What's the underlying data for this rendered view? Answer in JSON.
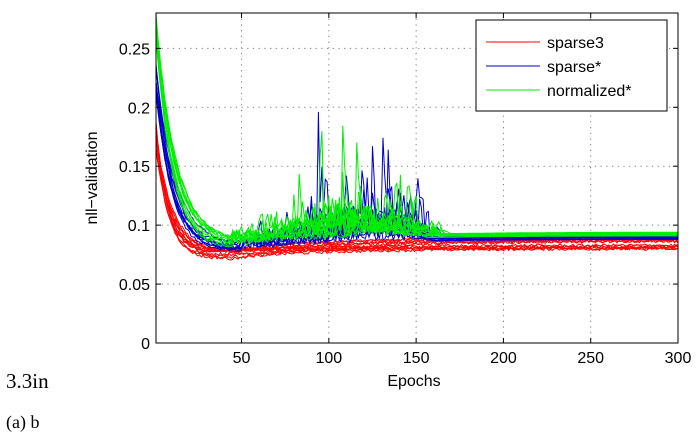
{
  "chart_data": {
    "type": "line",
    "xlabel": "Epochs",
    "ylabel": "nll−validation",
    "xlim": [
      1,
      300
    ],
    "ylim": [
      0,
      0.28
    ],
    "xticks": [
      50,
      100,
      150,
      200,
      250,
      300
    ],
    "yticks": [
      0,
      0.05,
      0.1,
      0.15,
      0.2,
      0.25
    ],
    "ytick_labels": [
      "0",
      "0.05",
      "0.1",
      "0.15",
      "0.2",
      "0.25"
    ],
    "grid": true,
    "legend_position": "top-right",
    "series": [
      {
        "name": "sparse3",
        "color": "#ff0000",
        "runs": 12,
        "epochs": 300,
        "start": [
          0.16,
          0.19
        ],
        "min_epoch": [
          25,
          45
        ],
        "min_value": [
          0.07,
          0.08
        ],
        "final_value": [
          0.08,
          0.09
        ],
        "noise": "low"
      },
      {
        "name": "sparse*",
        "color": "#0000cc",
        "runs": 10,
        "epochs": 300,
        "start": [
          0.21,
          0.24
        ],
        "min_epoch": [
          35,
          50
        ],
        "min_value": [
          0.076,
          0.085
        ],
        "final_value": [
          0.088,
          0.093
        ],
        "noise": "high",
        "noisy_window": [
          50,
          165
        ]
      },
      {
        "name": "normalized*",
        "color": "#00ee00",
        "runs": 10,
        "epochs": 300,
        "start": [
          0.26,
          0.28
        ],
        "min_epoch": [
          40,
          55
        ],
        "min_value": [
          0.08,
          0.088
        ],
        "final_value": [
          0.091,
          0.095
        ],
        "noise": "high",
        "noisy_window": [
          45,
          170
        ]
      }
    ]
  },
  "stray_text": "3.3in",
  "caption": "(a) b"
}
